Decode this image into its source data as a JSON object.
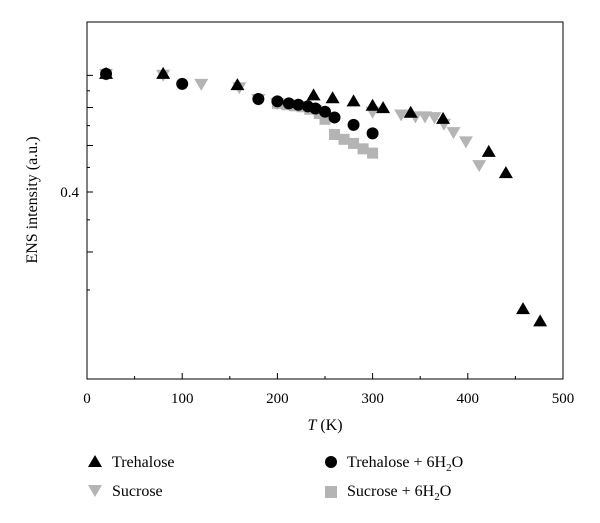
{
  "chart_data": {
    "type": "scatter",
    "xlabel_italic": "T",
    "xlabel_unit": " (K)",
    "ylabel": "ENS intensity (a.u.)",
    "xlim": [
      0,
      500
    ],
    "ylim_visible_tick": 0.4,
    "x_ticks": [
      0,
      100,
      200,
      300,
      400,
      500
    ],
    "y_tick_labels": [
      "0.4"
    ],
    "grid": false,
    "legend_position": "bottom",
    "series": [
      {
        "name": "Trehalose",
        "marker": "triangle-up",
        "color": "#000000",
        "points": [
          [
            20,
            0.705
          ],
          [
            80,
            0.705
          ],
          [
            158,
            0.668
          ],
          [
            238,
            0.636
          ],
          [
            258,
            0.627
          ],
          [
            280,
            0.618
          ],
          [
            300,
            0.605
          ],
          [
            311,
            0.598
          ],
          [
            340,
            0.585
          ],
          [
            374,
            0.568
          ],
          [
            422,
            0.485
          ],
          [
            440,
            0.438
          ],
          [
            458,
            0.228
          ],
          [
            476,
            0.215
          ]
        ]
      },
      {
        "name": "Sucrose",
        "marker": "triangle-down",
        "color": "#b4b4b4",
        "points": [
          [
            20,
            0.705
          ],
          [
            80,
            0.702
          ],
          [
            120,
            0.672
          ],
          [
            160,
            0.661
          ],
          [
            180,
            0.625
          ],
          [
            200,
            0.613
          ],
          [
            215,
            0.608
          ],
          [
            240,
            0.593
          ],
          [
            300,
            0.588
          ],
          [
            330,
            0.58
          ],
          [
            345,
            0.575
          ],
          [
            355,
            0.575
          ],
          [
            365,
            0.573
          ],
          [
            375,
            0.555
          ],
          [
            385,
            0.533
          ],
          [
            398,
            0.51
          ],
          [
            412,
            0.455
          ]
        ]
      },
      {
        "name": "Trehalose + 6H₂O",
        "marker": "circle",
        "color": "#000000",
        "points": [
          [
            20,
            0.705
          ],
          [
            100,
            0.672
          ],
          [
            180,
            0.625
          ],
          [
            200,
            0.618
          ],
          [
            212,
            0.612
          ],
          [
            222,
            0.608
          ],
          [
            232,
            0.603
          ],
          [
            240,
            0.597
          ],
          [
            250,
            0.588
          ],
          [
            260,
            0.572
          ],
          [
            280,
            0.552
          ],
          [
            300,
            0.53
          ]
        ]
      },
      {
        "name": "Sucrose + 6H₂O",
        "marker": "square",
        "color": "#b4b4b4",
        "points": [
          [
            200,
            0.612
          ],
          [
            210,
            0.608
          ],
          [
            218,
            0.605
          ],
          [
            226,
            0.602
          ],
          [
            234,
            0.595
          ],
          [
            244,
            0.583
          ],
          [
            250,
            0.567
          ],
          [
            260,
            0.527
          ],
          [
            270,
            0.515
          ],
          [
            280,
            0.505
          ],
          [
            290,
            0.492
          ],
          [
            300,
            0.482
          ]
        ]
      }
    ]
  },
  "legend": {
    "items": [
      {
        "label_main": "Trehalose",
        "label_sub": "",
        "label_tail": ""
      },
      {
        "label_main": "Sucrose",
        "label_sub": "",
        "label_tail": ""
      },
      {
        "label_main": "Trehalose + 6H",
        "label_sub": "2",
        "label_tail": "O"
      },
      {
        "label_main": "Sucrose + 6H",
        "label_sub": "2",
        "label_tail": "O"
      }
    ]
  }
}
